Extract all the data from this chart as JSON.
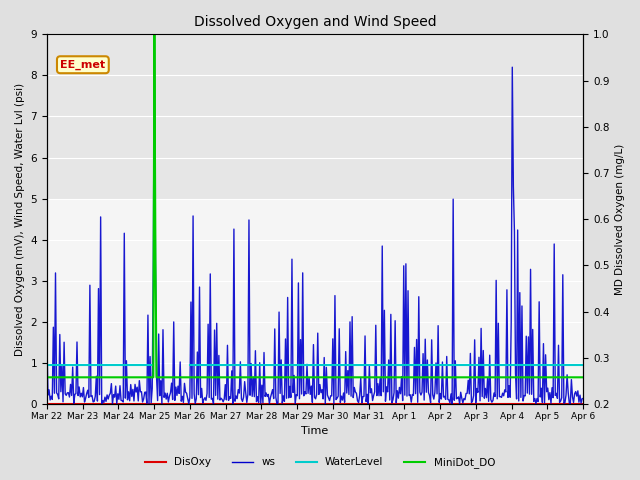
{
  "title": "Dissolved Oxygen and Wind Speed",
  "ylabel_left": "Dissolved Oxygen (mV), Wind Speed, Water Lvl (psi)",
  "ylabel_right": "MD Dissolved Oxygen (mg/L)",
  "xlabel": "Time",
  "ylim_left": [
    0.0,
    9.0
  ],
  "ylim_right": [
    0.2,
    1.0
  ],
  "annotation_text": "EE_met",
  "bg_color": "#e0e0e0",
  "plot_bg_color_light": "#f5f5f5",
  "plot_bg_color_dark": "#dcdcdc",
  "legend_items": [
    {
      "label": "DisOxy",
      "color": "#dd0000",
      "lw": 1.5
    },
    {
      "label": "ws",
      "color": "#0000cc",
      "lw": 1.0
    },
    {
      "label": "WaterLevel",
      "color": "#00cccc",
      "lw": 1.5
    },
    {
      "label": "MiniDot_DO",
      "color": "#00cc00",
      "lw": 1.5
    }
  ],
  "x_ticks": [
    "Mar 22",
    "Mar 23",
    "Mar 24",
    "Mar 25",
    "Mar 26",
    "Mar 27",
    "Mar 28",
    "Mar 29",
    "Mar 30",
    "Mar 31",
    "Apr 1",
    "Apr 2",
    "Apr 3",
    "Apr 4",
    "Apr 5",
    "Apr 6"
  ],
  "yticks_left": [
    0.0,
    1.0,
    2.0,
    3.0,
    4.0,
    5.0,
    6.0,
    7.0,
    8.0,
    9.0
  ],
  "yticks_right": [
    0.2,
    0.3,
    0.4,
    0.5,
    0.6,
    0.7,
    0.8,
    0.9,
    1.0
  ],
  "grid_color": "#ffffff",
  "shaded_band": [
    5.0,
    9.0
  ],
  "n_points": 500,
  "seed": 7
}
